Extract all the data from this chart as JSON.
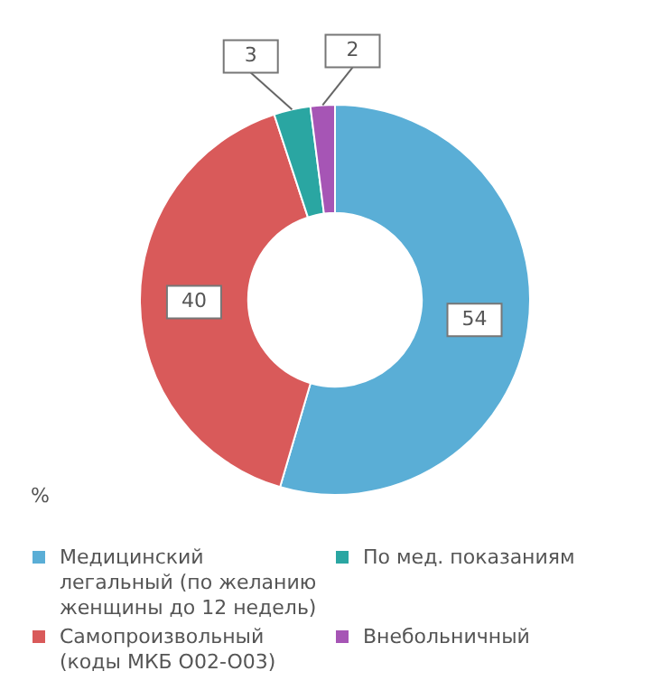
{
  "chart_data": {
    "type": "donut",
    "categories": [
      "Медицинский легальный (по желанию женщины до 12 недель)",
      "Самопроизвольный (коды МКБ O02-O03)",
      "По мед. показаниям",
      "Внебольничный"
    ],
    "values": [
      54,
      40,
      3,
      2
    ],
    "colors": [
      "#5aaed6",
      "#d95a5a",
      "#2aa6a2",
      "#a655b5"
    ],
    "data_labels": true,
    "legend": "bottom",
    "annotations": [
      "%"
    ]
  }
}
